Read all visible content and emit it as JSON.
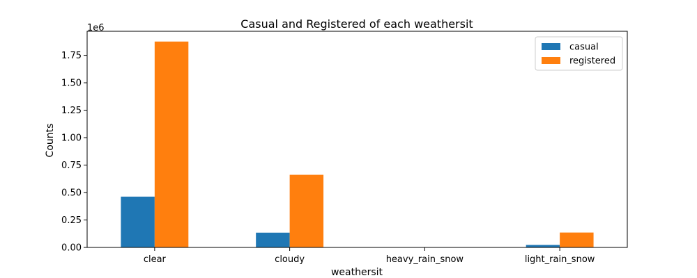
{
  "chart_data": {
    "type": "bar",
    "title": "Casual and Registered of each weathersit",
    "xlabel": "weathersit",
    "ylabel": "Counts",
    "y_offset_text": "1e6",
    "categories": [
      "clear",
      "cloudy",
      "heavy_rain_snow",
      "light_rain_snow"
    ],
    "series": [
      {
        "name": "casual",
        "color": "#1f77b4",
        "values": [
          462745,
          134481,
          223,
          22783
        ]
      },
      {
        "name": "registered",
        "color": "#ff7f0e",
        "values": [
          1875428,
          661471,
          1498,
          135548
        ]
      }
    ],
    "ylim": [
      0,
      1969000
    ],
    "y_ticks": [
      0,
      250000,
      500000,
      750000,
      1000000,
      1250000,
      1500000,
      1750000
    ],
    "y_tick_labels": [
      "0.00",
      "0.25",
      "0.50",
      "0.75",
      "1.00",
      "1.25",
      "1.50",
      "1.75"
    ],
    "grid": false,
    "legend_position": "top-right"
  }
}
